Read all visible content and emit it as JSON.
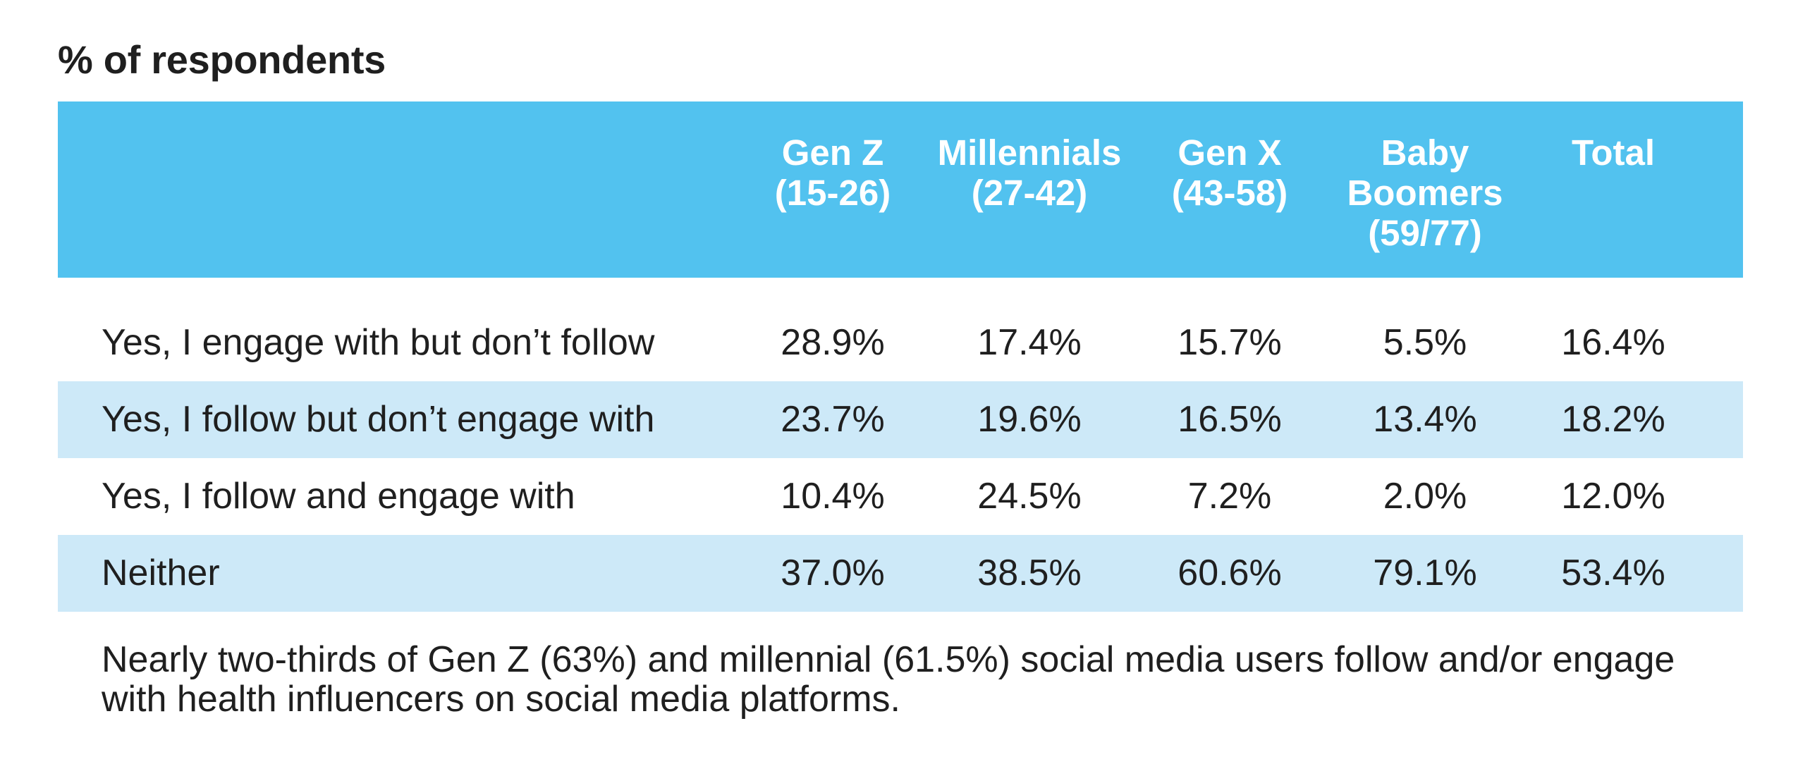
{
  "subtitle": "% of respondents",
  "colors": {
    "header_bg": "#52c2ef",
    "shaded_row_bg": "#cde9f8",
    "header_text": "#ffffff",
    "body_text": "#1f1f1f"
  },
  "chart_data": {
    "type": "table",
    "title": "% of respondents",
    "columns": [
      {
        "lines": [
          "Gen Z",
          "(15-26)"
        ]
      },
      {
        "lines": [
          "Millennials",
          "(27-42)"
        ]
      },
      {
        "lines": [
          "Gen X",
          "(43-58)"
        ]
      },
      {
        "lines": [
          "Baby",
          "Boomers",
          "(59/77)"
        ]
      },
      {
        "lines": [
          "Total"
        ]
      }
    ],
    "rows": [
      {
        "label": "Yes, I engage with but don’t follow",
        "values": [
          "28.9%",
          "17.4%",
          "15.7%",
          "5.5%",
          "16.4%"
        ],
        "shaded": false
      },
      {
        "label": "Yes, I follow but don’t engage with",
        "values": [
          "23.7%",
          "19.6%",
          "16.5%",
          "13.4%",
          "18.2%"
        ],
        "shaded": true
      },
      {
        "label": "Yes, I follow and engage with",
        "values": [
          "10.4%",
          "24.5%",
          "7.2%",
          "2.0%",
          "12.0%"
        ],
        "shaded": false
      },
      {
        "label": "Neither",
        "values": [
          "37.0%",
          "38.5%",
          "60.6%",
          "79.1%",
          "53.4%"
        ],
        "shaded": true
      }
    ]
  },
  "note": "Nearly two-thirds of Gen Z (63%) and millennial (61.5%) social media users follow and/or engage with health influencers on social media platforms."
}
